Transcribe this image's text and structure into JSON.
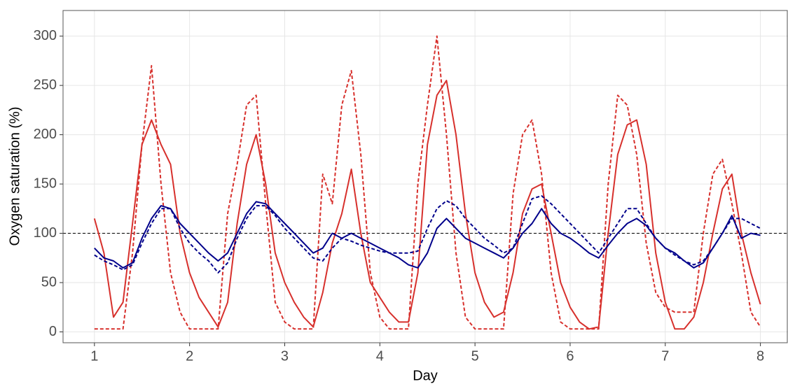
{
  "chart_data": {
    "type": "line",
    "x_label": "Day",
    "y_label": "Oxygen saturation (%)",
    "x": [
      1,
      1.1,
      1.2,
      1.3,
      1.4,
      1.5,
      1.6,
      1.7,
      1.8,
      1.9,
      2,
      2.1,
      2.2,
      2.3,
      2.4,
      2.5,
      2.6,
      2.7,
      2.8,
      2.9,
      3,
      3.1,
      3.2,
      3.3,
      3.4,
      3.5,
      3.6,
      3.7,
      3.8,
      3.9,
      4,
      4.1,
      4.2,
      4.3,
      4.4,
      4.5,
      4.6,
      4.7,
      4.8,
      4.9,
      5,
      5.1,
      5.2,
      5.3,
      5.4,
      5.5,
      5.6,
      5.7,
      5.8,
      5.9,
      6,
      6.1,
      6.2,
      6.3,
      6.4,
      6.5,
      6.6,
      6.7,
      6.8,
      6.9,
      7,
      7.1,
      7.2,
      7.3,
      7.4,
      7.5,
      7.6,
      7.7,
      7.8,
      7.9,
      8
    ],
    "series": [
      {
        "color": "#d7302c",
        "dash": false,
        "values": [
          115,
          80,
          15,
          30,
          110,
          190,
          215,
          190,
          170,
          100,
          60,
          35,
          20,
          5,
          30,
          110,
          170,
          200,
          150,
          80,
          50,
          30,
          15,
          5,
          40,
          90,
          120,
          165,
          100,
          50,
          35,
          20,
          10,
          10,
          60,
          190,
          240,
          255,
          200,
          120,
          60,
          30,
          15,
          20,
          60,
          120,
          145,
          150,
          100,
          50,
          25,
          10,
          3,
          5,
          100,
          180,
          210,
          215,
          170,
          80,
          30,
          3,
          3,
          15,
          50,
          100,
          145,
          160,
          100,
          60,
          28
        ]
      },
      {
        "color": "#d7302c",
        "dash": true,
        "values": [
          3,
          3,
          3,
          3,
          80,
          190,
          270,
          150,
          60,
          20,
          3,
          3,
          3,
          3,
          120,
          170,
          230,
          240,
          130,
          30,
          10,
          3,
          3,
          3,
          160,
          130,
          230,
          265,
          180,
          60,
          15,
          3,
          3,
          3,
          150,
          230,
          300,
          200,
          80,
          15,
          3,
          3,
          3,
          3,
          140,
          200,
          215,
          160,
          60,
          10,
          3,
          3,
          3,
          3,
          150,
          240,
          230,
          180,
          90,
          40,
          25,
          20,
          20,
          20,
          100,
          160,
          175,
          130,
          80,
          20,
          5
        ]
      },
      {
        "color": "#00008b",
        "dash": false,
        "values": [
          85,
          75,
          72,
          65,
          70,
          95,
          115,
          128,
          125,
          110,
          100,
          90,
          80,
          72,
          80,
          100,
          120,
          132,
          130,
          120,
          110,
          100,
          90,
          80,
          85,
          100,
          95,
          100,
          95,
          90,
          85,
          80,
          75,
          68,
          65,
          80,
          105,
          115,
          105,
          95,
          90,
          85,
          80,
          75,
          85,
          100,
          110,
          125,
          110,
          100,
          95,
          88,
          80,
          75,
          88,
          100,
          110,
          115,
          108,
          95,
          85,
          80,
          72,
          65,
          70,
          85,
          100,
          118,
          95,
          100,
          98
        ]
      },
      {
        "color": "#00008b",
        "dash": true,
        "values": [
          78,
          72,
          68,
          63,
          68,
          90,
          110,
          125,
          125,
          105,
          90,
          80,
          72,
          60,
          70,
          95,
          115,
          128,
          128,
          118,
          105,
          95,
          85,
          75,
          72,
          85,
          95,
          92,
          88,
          85,
          82,
          80,
          80,
          80,
          82,
          105,
          125,
          133,
          128,
          115,
          105,
          95,
          88,
          80,
          85,
          110,
          135,
          138,
          130,
          120,
          110,
          100,
          90,
          80,
          95,
          110,
          125,
          125,
          110,
          95,
          85,
          78,
          72,
          68,
          72,
          85,
          100,
          115,
          115,
          110,
          105
        ]
      }
    ],
    "hline": 100,
    "xlim": [
      0.67,
      8.29
    ],
    "xticks": [
      1,
      2,
      3,
      4,
      5,
      6,
      7,
      8
    ],
    "ylim": [
      -11,
      326
    ],
    "yticks": [
      0,
      50,
      100,
      150,
      200,
      250,
      300
    ],
    "grid": true
  }
}
